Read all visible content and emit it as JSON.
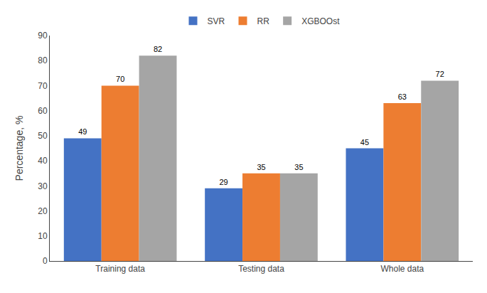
{
  "chart_data": {
    "type": "bar",
    "categories": [
      "Training data",
      "Testing data",
      "Whole data"
    ],
    "series": [
      {
        "name": "SVR",
        "color": "#4472C4",
        "values": [
          49,
          29,
          45
        ]
      },
      {
        "name": "RR",
        "color": "#ED7D31",
        "values": [
          70,
          35,
          63
        ]
      },
      {
        "name": "XGBOOst",
        "color": "#A5A5A5",
        "values": [
          82,
          35,
          72
        ]
      }
    ],
    "y_label": "Percentage, %",
    "ylim": [
      0,
      90
    ],
    "yticks": [
      0,
      10,
      20,
      30,
      40,
      50,
      60,
      70,
      80,
      90
    ],
    "data_labels": true,
    "legend": "upper center",
    "grid": false
  }
}
